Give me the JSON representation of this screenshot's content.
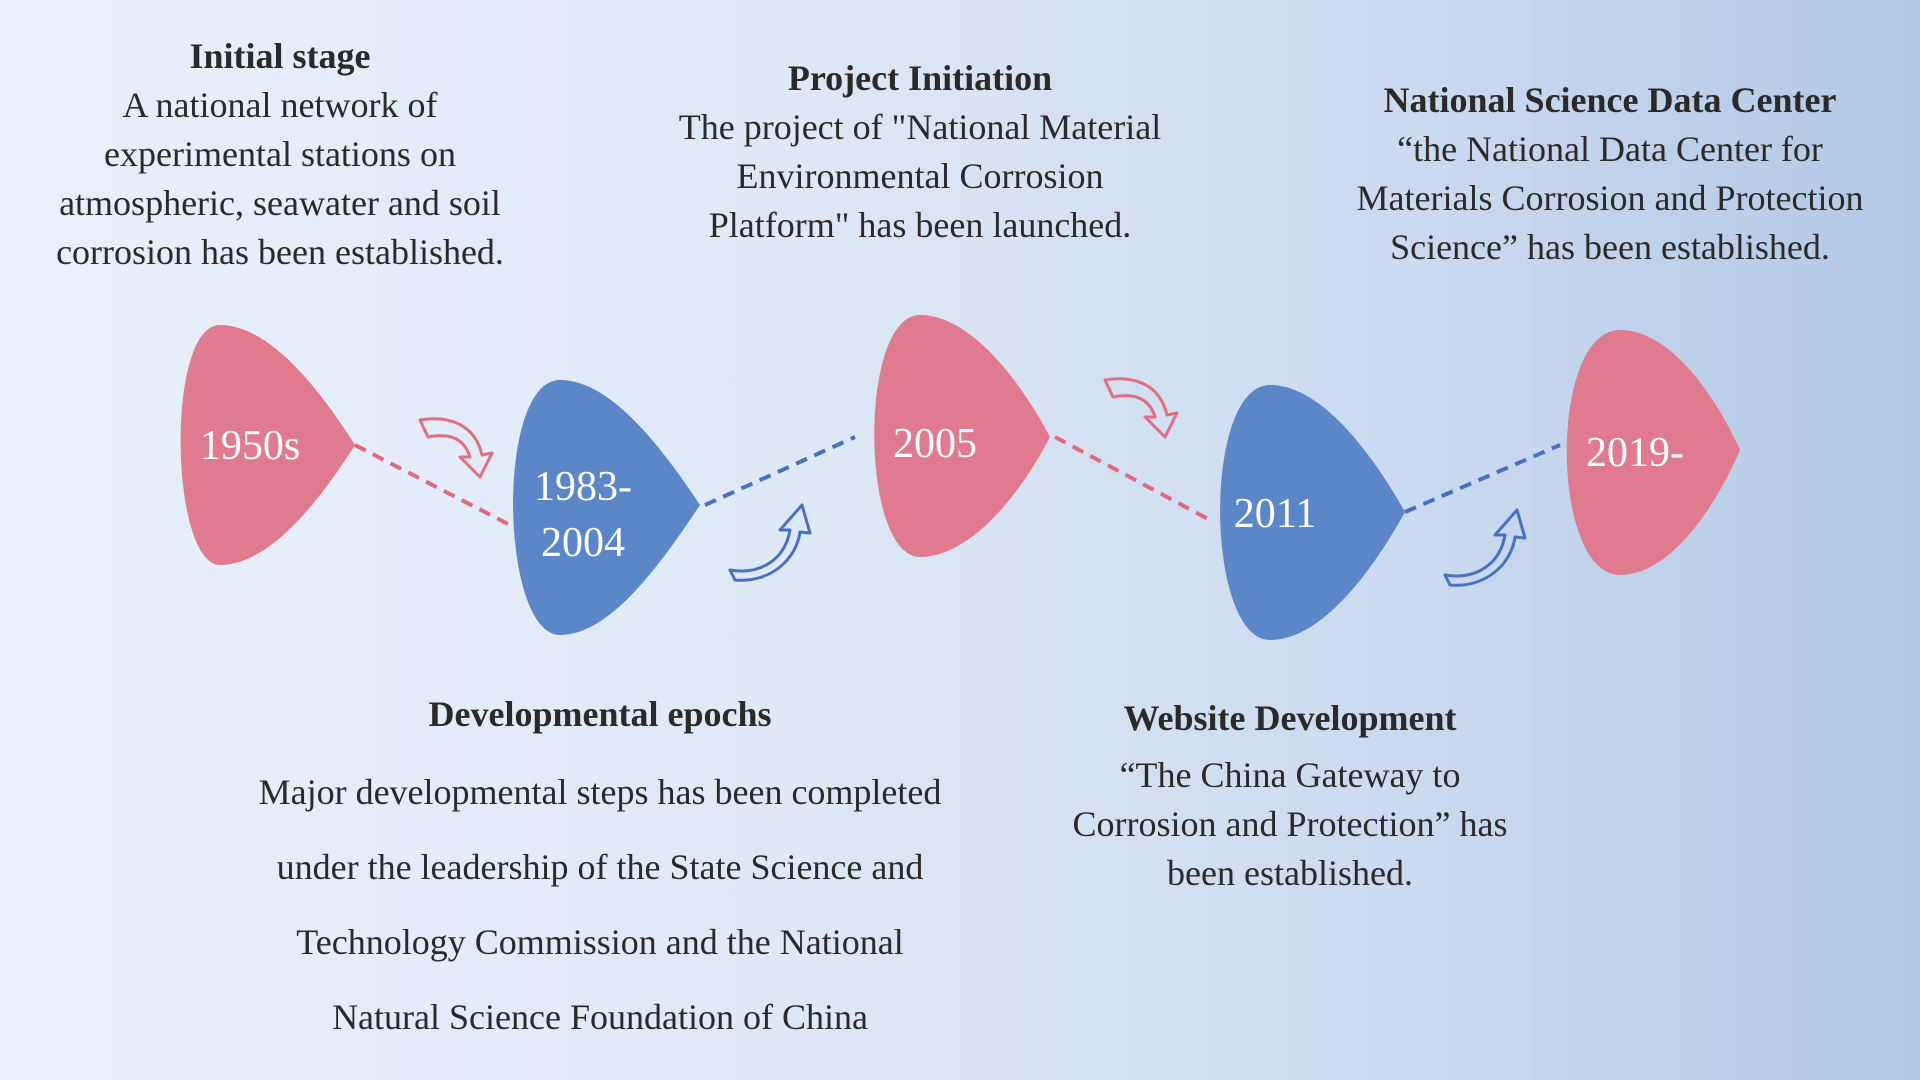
{
  "colors": {
    "pink": "#e07b8f",
    "blue": "#5b86c8",
    "pink_dash": "#e06a80",
    "blue_dash": "#4a70c0",
    "arrow_pink": "#e07080",
    "arrow_blue": "#4a70c0"
  },
  "milestones": [
    {
      "label": "1950s",
      "color": "pink"
    },
    {
      "label": "1983-\n2004",
      "color": "blue"
    },
    {
      "label": "2005",
      "color": "pink"
    },
    {
      "label": "2011",
      "color": "blue"
    },
    {
      "label": "2019-",
      "color": "pink"
    }
  ],
  "stages": {
    "initial": {
      "heading": "Initial stage",
      "desc": "A national network of\nexperimental stations on\natmospheric, seawater and soil\ncorrosion has been established."
    },
    "project": {
      "heading": "Project Initiation",
      "desc": "The project of \"National Material\nEnvironmental Corrosion\nPlatform\" has been launched."
    },
    "nsdc": {
      "heading": "National Science Data Center",
      "desc": "“the National Data Center for\nMaterials Corrosion and Protection\nScience” has been established."
    },
    "developmental": {
      "heading": "Developmental epochs",
      "desc": "Major developmental steps has been completed\nunder the leadership of the State Science and\nTechnology Commission and the National\nNatural Science Foundation of China"
    },
    "website": {
      "heading": "Website Development",
      "desc": "“The China Gateway to\nCorrosion and Protection”  has\nbeen  established."
    }
  },
  "arrows": [
    {
      "icon": "curved-arrow-down-icon",
      "color": "arrow_pink"
    },
    {
      "icon": "curved-arrow-up-icon",
      "color": "arrow_blue"
    },
    {
      "icon": "curved-arrow-down-icon",
      "color": "arrow_pink"
    },
    {
      "icon": "curved-arrow-up-icon",
      "color": "arrow_blue"
    }
  ]
}
